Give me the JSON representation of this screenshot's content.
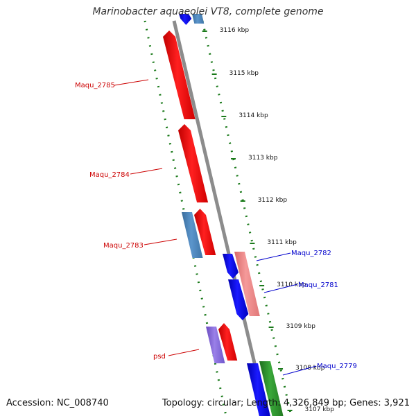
{
  "title": "Marinobacter aquaeolei VT8, complete genome",
  "footer": {
    "accession": "Accession: NC_008740",
    "summary": "Topology: circular; Length: 4,326,849 bp; Genes: 3,921"
  },
  "ticks": [
    "3116 kbp",
    "3115 kbp",
    "3114 kbp",
    "3113 kbp",
    "3112 kbp",
    "3111 kbp",
    "3110 kbp",
    "3109 kbp",
    "3108 kbp",
    "3107 kbp"
  ],
  "left_labels": [
    "Maqu_2785",
    "Maqu_2784",
    "Maqu_2783",
    "psd"
  ],
  "right_labels": [
    "Maqu_2782",
    "Maqu_2781",
    "Maqu_2779"
  ],
  "colors": {
    "forward_gene": "#ff0000",
    "reverse_gene": "#0000ff",
    "steel_blue": "#4f88c0",
    "pink": "#f08080",
    "purple": "#8060d0",
    "green": "#2a8c2a",
    "backbone": "#8c8c8c",
    "tick": "#1a7a1a"
  }
}
